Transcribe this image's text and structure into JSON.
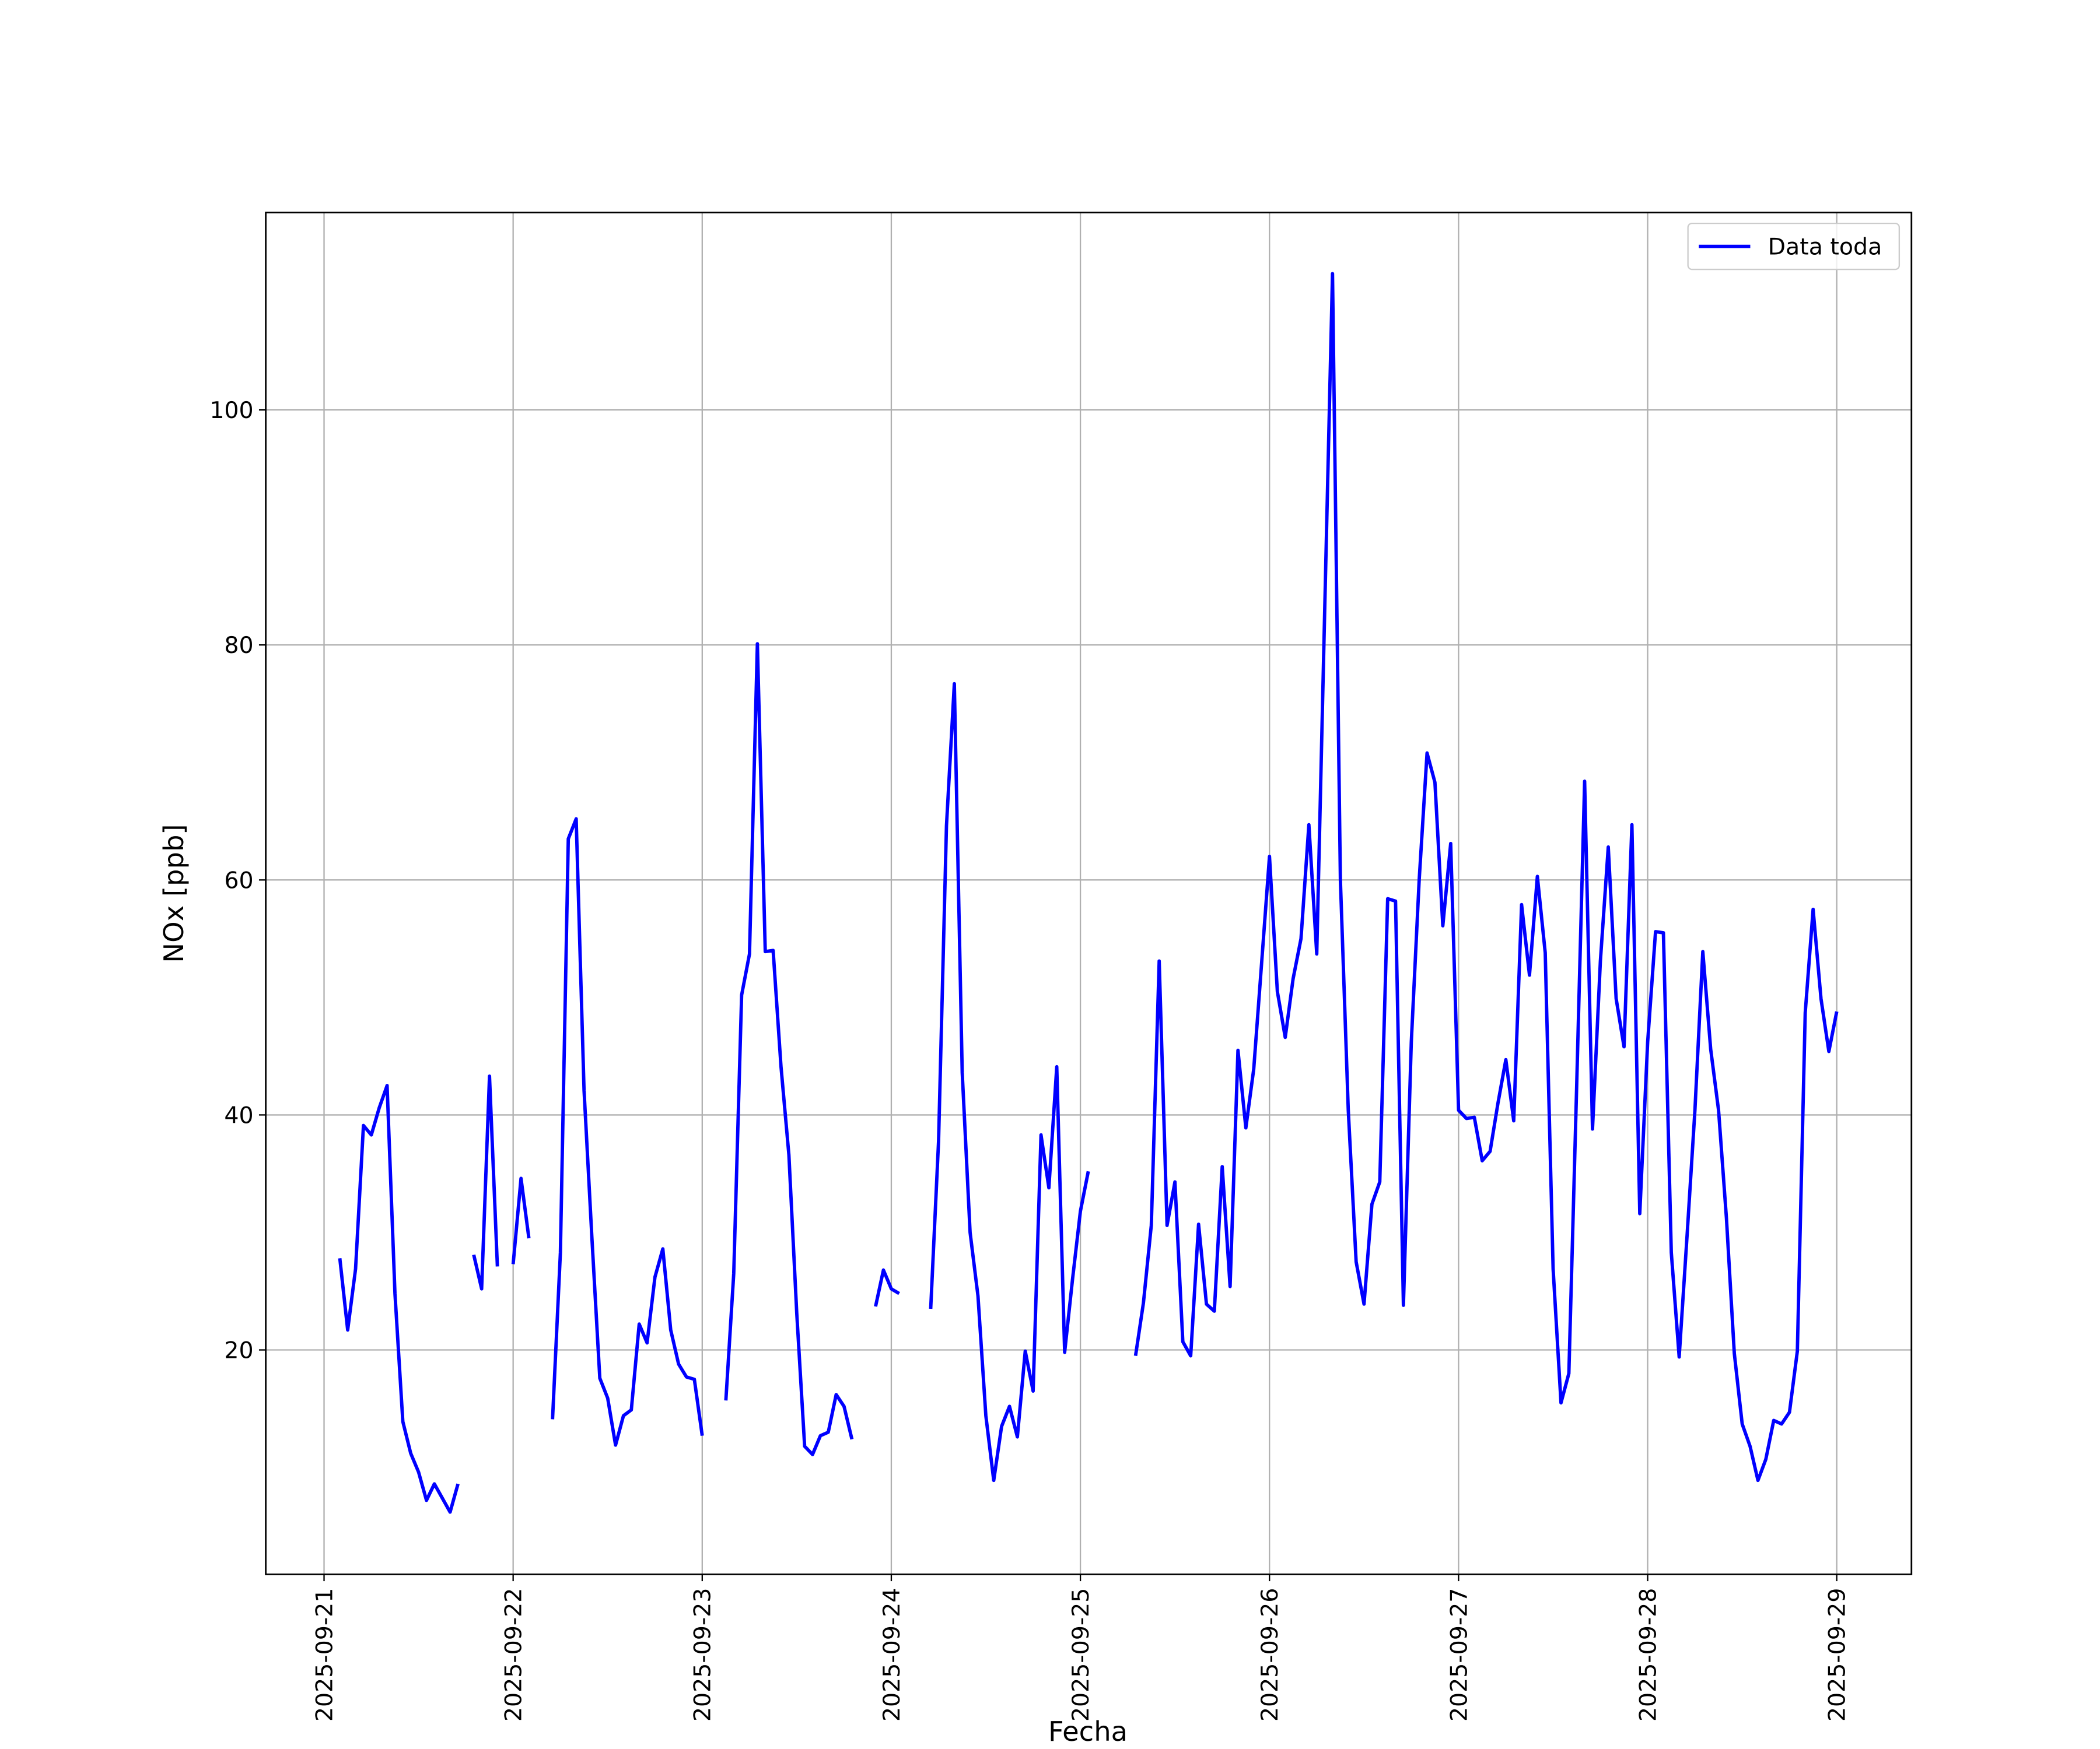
{
  "chart_data": {
    "type": "line",
    "xlabel": "Fecha",
    "ylabel": "NOx [ppb]",
    "x": [
      "2025-09-21 02:00",
      "2025-09-21 03:00",
      "2025-09-21 04:00",
      "2025-09-21 05:00",
      "2025-09-21 06:00",
      "2025-09-21 07:00",
      "2025-09-21 08:00",
      "2025-09-21 09:00",
      "2025-09-21 10:00",
      "2025-09-21 11:00",
      "2025-09-21 12:00",
      "2025-09-21 13:00",
      "2025-09-21 14:00",
      "2025-09-21 15:00",
      "2025-09-21 16:00",
      "2025-09-21 17:00",
      "2025-09-21 18:00",
      "2025-09-21 19:00",
      "2025-09-21 20:00",
      "2025-09-21 21:00",
      "2025-09-21 22:00",
      "2025-09-21 23:00",
      "2025-09-22 00:00",
      "2025-09-22 01:00",
      "2025-09-22 02:00",
      "2025-09-22 03:00",
      "2025-09-22 04:00",
      "2025-09-22 05:00",
      "2025-09-22 06:00",
      "2025-09-22 07:00",
      "2025-09-22 08:00",
      "2025-09-22 09:00",
      "2025-09-22 10:00",
      "2025-09-22 11:00",
      "2025-09-22 12:00",
      "2025-09-22 13:00",
      "2025-09-22 14:00",
      "2025-09-22 15:00",
      "2025-09-22 16:00",
      "2025-09-22 17:00",
      "2025-09-22 18:00",
      "2025-09-22 19:00",
      "2025-09-22 20:00",
      "2025-09-22 21:00",
      "2025-09-22 22:00",
      "2025-09-22 23:00",
      "2025-09-23 00:00",
      "2025-09-23 01:00",
      "2025-09-23 02:00",
      "2025-09-23 03:00",
      "2025-09-23 04:00",
      "2025-09-23 05:00",
      "2025-09-23 06:00",
      "2025-09-23 07:00",
      "2025-09-23 08:00",
      "2025-09-23 09:00",
      "2025-09-23 10:00",
      "2025-09-23 11:00",
      "2025-09-23 12:00",
      "2025-09-23 13:00",
      "2025-09-23 14:00",
      "2025-09-23 15:00",
      "2025-09-23 16:00",
      "2025-09-23 17:00",
      "2025-09-23 18:00",
      "2025-09-23 19:00",
      "2025-09-23 20:00",
      "2025-09-23 21:00",
      "2025-09-23 22:00",
      "2025-09-23 23:00",
      "2025-09-24 00:00",
      "2025-09-24 01:00",
      "2025-09-24 02:00",
      "2025-09-24 03:00",
      "2025-09-24 04:00",
      "2025-09-24 05:00",
      "2025-09-24 06:00",
      "2025-09-24 07:00",
      "2025-09-24 08:00",
      "2025-09-24 09:00",
      "2025-09-24 10:00",
      "2025-09-24 11:00",
      "2025-09-24 12:00",
      "2025-09-24 13:00",
      "2025-09-24 14:00",
      "2025-09-24 15:00",
      "2025-09-24 16:00",
      "2025-09-24 17:00",
      "2025-09-24 18:00",
      "2025-09-24 19:00",
      "2025-09-24 20:00",
      "2025-09-24 21:00",
      "2025-09-24 22:00",
      "2025-09-24 23:00",
      "2025-09-25 00:00",
      "2025-09-25 01:00",
      "2025-09-25 02:00",
      "2025-09-25 03:00",
      "2025-09-25 04:00",
      "2025-09-25 05:00",
      "2025-09-25 06:00",
      "2025-09-25 07:00",
      "2025-09-25 08:00",
      "2025-09-25 09:00",
      "2025-09-25 10:00",
      "2025-09-25 11:00",
      "2025-09-25 12:00",
      "2025-09-25 13:00",
      "2025-09-25 14:00",
      "2025-09-25 15:00",
      "2025-09-25 16:00",
      "2025-09-25 17:00",
      "2025-09-25 18:00",
      "2025-09-25 19:00",
      "2025-09-25 20:00",
      "2025-09-25 21:00",
      "2025-09-25 22:00",
      "2025-09-25 23:00",
      "2025-09-26 00:00",
      "2025-09-26 01:00",
      "2025-09-26 02:00",
      "2025-09-26 03:00",
      "2025-09-26 04:00",
      "2025-09-26 05:00",
      "2025-09-26 06:00",
      "2025-09-26 07:00",
      "2025-09-26 08:00",
      "2025-09-26 09:00",
      "2025-09-26 10:00",
      "2025-09-26 11:00",
      "2025-09-26 12:00",
      "2025-09-26 13:00",
      "2025-09-26 14:00",
      "2025-09-26 15:00",
      "2025-09-26 16:00",
      "2025-09-26 17:00",
      "2025-09-26 18:00",
      "2025-09-26 19:00",
      "2025-09-26 20:00",
      "2025-09-26 21:00",
      "2025-09-26 22:00",
      "2025-09-26 23:00",
      "2025-09-27 00:00",
      "2025-09-27 01:00",
      "2025-09-27 02:00",
      "2025-09-27 03:00",
      "2025-09-27 04:00",
      "2025-09-27 05:00",
      "2025-09-27 06:00",
      "2025-09-27 07:00",
      "2025-09-27 08:00",
      "2025-09-27 09:00",
      "2025-09-27 10:00",
      "2025-09-27 11:00",
      "2025-09-27 12:00",
      "2025-09-27 13:00",
      "2025-09-27 14:00",
      "2025-09-27 15:00",
      "2025-09-27 16:00",
      "2025-09-27 17:00",
      "2025-09-27 18:00",
      "2025-09-27 19:00",
      "2025-09-27 20:00",
      "2025-09-27 21:00",
      "2025-09-27 22:00",
      "2025-09-27 23:00",
      "2025-09-28 00:00",
      "2025-09-28 01:00",
      "2025-09-28 02:00",
      "2025-09-28 03:00",
      "2025-09-28 04:00",
      "2025-09-28 05:00",
      "2025-09-28 06:00",
      "2025-09-28 07:00",
      "2025-09-28 08:00",
      "2025-09-28 09:00",
      "2025-09-28 10:00",
      "2025-09-28 11:00",
      "2025-09-28 12:00",
      "2025-09-28 13:00",
      "2025-09-28 14:00",
      "2025-09-28 15:00",
      "2025-09-28 16:00",
      "2025-09-28 17:00",
      "2025-09-28 18:00",
      "2025-09-28 19:00",
      "2025-09-28 20:00",
      "2025-09-28 21:00",
      "2025-09-28 22:00",
      "2025-09-28 23:00",
      "2025-09-29 00:00"
    ],
    "series": [
      {
        "name": "Data toda",
        "color": "#0000ff",
        "values": [
          27.8,
          21.7,
          26.9,
          39.1,
          38.3,
          40.6,
          42.5,
          24.8,
          13.9,
          11.2,
          9.6,
          7.2,
          8.6,
          7.4,
          6.2,
          8.6,
          null,
          28.1,
          25.2,
          43.3,
          27.1,
          null,
          27.3,
          34.6,
          29.5,
          null,
          null,
          14.1,
          28.3,
          63.5,
          65.2,
          42.1,
          29.5,
          17.6,
          15.9,
          11.9,
          14.4,
          14.9,
          22.2,
          20.6,
          26.2,
          28.6,
          21.7,
          18.8,
          17.7,
          17.5,
          12.7,
          null,
          null,
          15.7,
          26.5,
          50.2,
          53.7,
          80.1,
          53.9,
          54.0,
          44.1,
          36.6,
          23.1,
          11.8,
          11.1,
          12.7,
          13.0,
          16.2,
          15.2,
          12.4,
          null,
          null,
          23.7,
          26.8,
          25.2,
          24.8,
          null,
          null,
          null,
          23.5,
          37.8,
          64.6,
          76.7,
          43.6,
          30.0,
          24.6,
          14.4,
          8.9,
          13.5,
          15.2,
          12.6,
          19.9,
          16.5,
          38.3,
          33.8,
          44.1,
          19.8,
          26.0,
          31.8,
          35.2,
          null,
          null,
          null,
          null,
          null,
          19.5,
          24.0,
          30.6,
          53.1,
          30.6,
          34.3,
          20.7,
          19.5,
          30.7,
          23.9,
          23.3,
          35.6,
          25.4,
          45.5,
          38.9,
          43.9,
          52.9,
          62.0,
          50.5,
          46.6,
          51.6,
          55.0,
          64.7,
          53.7,
          82.7,
          111.6,
          60.0,
          40.4,
          27.5,
          23.9,
          32.4,
          34.3,
          58.4,
          58.2,
          23.8,
          46.2,
          60.0,
          70.8,
          68.3,
          56.1,
          63.1,
          40.4,
          39.7,
          39.8,
          36.1,
          36.9,
          41.0,
          44.7,
          39.5,
          57.9,
          51.9,
          60.3,
          53.8,
          26.9,
          15.5,
          18.0,
          42.7,
          68.4,
          38.8,
          53.1,
          62.8,
          49.9,
          45.8,
          64.7,
          31.6,
          46.2,
          55.6,
          55.5,
          28.3,
          19.4,
          29.7,
          40.4,
          53.9,
          45.6,
          40.4,
          31.2,
          19.7,
          13.7,
          11.8,
          8.9,
          10.7,
          14.0,
          13.7,
          14.7,
          19.9,
          48.7,
          57.5,
          49.9,
          45.4,
          48.8
        ]
      }
    ],
    "xlim": [
      "2025-09-20 16:36",
      "2025-09-29 09:29"
    ],
    "xticks": [
      "2025-09-21",
      "2025-09-22",
      "2025-09-23",
      "2025-09-24",
      "2025-09-25",
      "2025-09-26",
      "2025-09-27",
      "2025-09-28",
      "2025-09-29"
    ],
    "ylim": [
      0.9,
      116.8
    ],
    "yticks": [
      20,
      40,
      60,
      80,
      100
    ],
    "grid": true,
    "legend": "upper right"
  }
}
